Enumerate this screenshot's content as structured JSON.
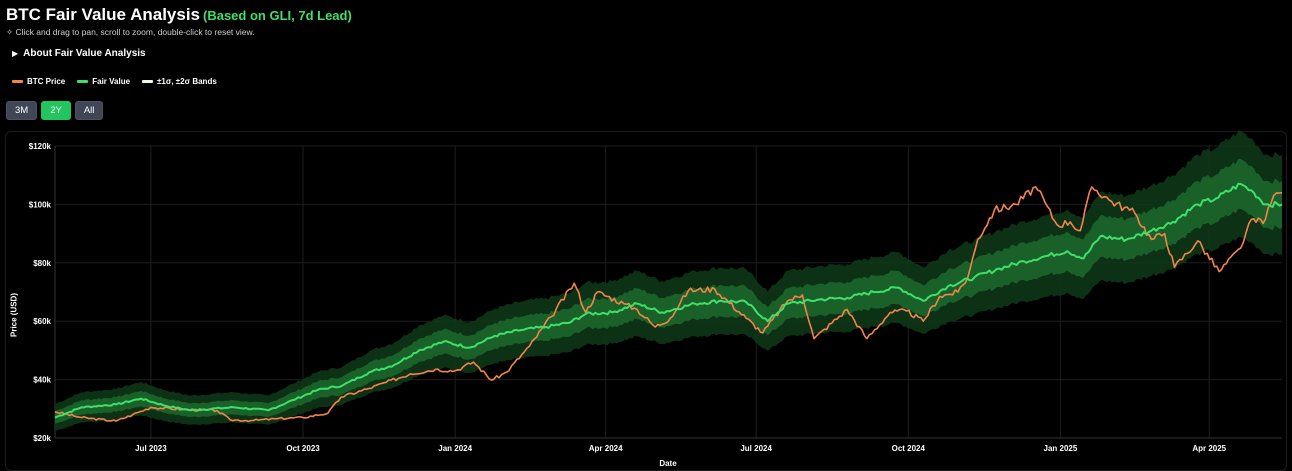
{
  "header": {
    "title": "BTC Fair Value Analysis",
    "subtitle": "(Based on GLI, 7d Lead)",
    "hint": "✧ Click and drag to pan, scroll to zoom, double-click to reset view.",
    "about_label": "About Fair Value Analysis",
    "about_icon": "triangle-right-icon"
  },
  "ranges": {
    "items": [
      "3M",
      "2Y",
      "All"
    ],
    "selected": "2Y"
  },
  "colors": {
    "btc": "#f5844c",
    "fair": "#3ee06a",
    "band1": "#1c6a2c",
    "band2": "#0e3a17",
    "grid": "#1e1e1e",
    "accent": "#22c55e"
  },
  "chart_data": {
    "type": "line",
    "xlabel": "Date",
    "ylabel": "Price (USD)",
    "x_range": [
      "2023-05-04",
      "2025-05-15"
    ],
    "ylim": [
      20000,
      120000
    ],
    "y_ticks": [
      {
        "value": 20000,
        "label": "$20k"
      },
      {
        "value": 40000,
        "label": "$40k"
      },
      {
        "value": 60000,
        "label": "$60k"
      },
      {
        "value": 80000,
        "label": "$80k"
      },
      {
        "value": 100000,
        "label": "$100k"
      },
      {
        "value": 120000,
        "label": "$120k"
      }
    ],
    "x_ticks": [
      {
        "date": "2023-07-01",
        "label": "Jul 2023"
      },
      {
        "date": "2023-10-01",
        "label": "Oct 2023"
      },
      {
        "date": "2024-01-01",
        "label": "Jan 2024"
      },
      {
        "date": "2024-04-01",
        "label": "Apr 2024"
      },
      {
        "date": "2024-07-01",
        "label": "Jul 2024"
      },
      {
        "date": "2024-10-01",
        "label": "Oct 2024"
      },
      {
        "date": "2025-01-01",
        "label": "Jan 2025"
      },
      {
        "date": "2025-04-01",
        "label": "Apr 2025"
      }
    ],
    "grid": true,
    "legend_position": "top-left",
    "series": [
      {
        "name": "BTC Price",
        "color": "#f5844c",
        "points": [
          [
            "2023-05-04",
            29000
          ],
          [
            "2023-05-20",
            27000
          ],
          [
            "2023-06-10",
            25800
          ],
          [
            "2023-06-20",
            28000
          ],
          [
            "2023-07-01",
            30500
          ],
          [
            "2023-07-20",
            29800
          ],
          [
            "2023-08-10",
            29400
          ],
          [
            "2023-08-18",
            26200
          ],
          [
            "2023-09-01",
            26000
          ],
          [
            "2023-09-15",
            26600
          ],
          [
            "2023-10-01",
            27000
          ],
          [
            "2023-10-16",
            28500
          ],
          [
            "2023-10-24",
            34000
          ],
          [
            "2023-11-10",
            37000
          ],
          [
            "2023-12-05",
            42000
          ],
          [
            "2023-12-20",
            43500
          ],
          [
            "2024-01-01",
            43000
          ],
          [
            "2024-01-12",
            46000
          ],
          [
            "2024-01-23",
            39800
          ],
          [
            "2024-02-01",
            42500
          ],
          [
            "2024-02-15",
            51500
          ],
          [
            "2024-02-28",
            61500
          ],
          [
            "2024-03-13",
            73000
          ],
          [
            "2024-03-20",
            63000
          ],
          [
            "2024-03-27",
            70000
          ],
          [
            "2024-04-12",
            66000
          ],
          [
            "2024-04-20",
            64000
          ],
          [
            "2024-05-01",
            58000
          ],
          [
            "2024-05-10",
            61000
          ],
          [
            "2024-05-21",
            70500
          ],
          [
            "2024-06-06",
            71000
          ],
          [
            "2024-06-25",
            61000
          ],
          [
            "2024-07-05",
            56000
          ],
          [
            "2024-07-20",
            67000
          ],
          [
            "2024-07-29",
            69000
          ],
          [
            "2024-08-05",
            54000
          ],
          [
            "2024-08-25",
            64000
          ],
          [
            "2024-09-06",
            54000
          ],
          [
            "2024-09-20",
            63000
          ],
          [
            "2024-09-30",
            63500
          ],
          [
            "2024-10-10",
            60000
          ],
          [
            "2024-10-20",
            68500
          ],
          [
            "2024-10-31",
            70000
          ],
          [
            "2024-11-06",
            75000
          ],
          [
            "2024-11-12",
            88000
          ],
          [
            "2024-11-22",
            98000
          ],
          [
            "2024-12-05",
            100000
          ],
          [
            "2024-12-17",
            106000
          ],
          [
            "2024-12-30",
            93000
          ],
          [
            "2025-01-07",
            94000
          ],
          [
            "2025-01-13",
            91000
          ],
          [
            "2025-01-20",
            106000
          ],
          [
            "2025-02-01",
            101000
          ],
          [
            "2025-02-15",
            97000
          ],
          [
            "2025-02-25",
            88000
          ],
          [
            "2025-03-05",
            90000
          ],
          [
            "2025-03-11",
            78500
          ],
          [
            "2025-03-25",
            87500
          ],
          [
            "2025-04-07",
            77000
          ],
          [
            "2025-04-20",
            85000
          ],
          [
            "2025-04-25",
            93500
          ],
          [
            "2025-05-05",
            95000
          ],
          [
            "2025-05-10",
            103000
          ],
          [
            "2025-05-15",
            104000
          ]
        ]
      },
      {
        "name": "Fair Value",
        "color": "#3ee06a",
        "points": [
          [
            "2023-05-04",
            27000
          ],
          [
            "2023-05-20",
            30500
          ],
          [
            "2023-06-10",
            31500
          ],
          [
            "2023-06-25",
            33500
          ],
          [
            "2023-07-10",
            31000
          ],
          [
            "2023-07-25",
            29500
          ],
          [
            "2023-08-20",
            30500
          ],
          [
            "2023-09-10",
            29500
          ],
          [
            "2023-09-25",
            33000
          ],
          [
            "2023-10-10",
            36500
          ],
          [
            "2023-10-25",
            38000
          ],
          [
            "2023-11-10",
            42500
          ],
          [
            "2023-11-25",
            45000
          ],
          [
            "2023-12-10",
            50000
          ],
          [
            "2023-12-25",
            53000
          ],
          [
            "2024-01-10",
            51000
          ],
          [
            "2024-01-25",
            55000
          ],
          [
            "2024-02-10",
            57000
          ],
          [
            "2024-02-25",
            58000
          ],
          [
            "2024-03-10",
            59500
          ],
          [
            "2024-03-20",
            62500
          ],
          [
            "2024-04-05",
            63000
          ],
          [
            "2024-04-20",
            66000
          ],
          [
            "2024-05-05",
            63000
          ],
          [
            "2024-05-25",
            66000
          ],
          [
            "2024-06-10",
            67000
          ],
          [
            "2024-06-25",
            66500
          ],
          [
            "2024-07-08",
            60000
          ],
          [
            "2024-07-20",
            66000
          ],
          [
            "2024-08-10",
            67500
          ],
          [
            "2024-08-25",
            68000
          ],
          [
            "2024-09-10",
            70000
          ],
          [
            "2024-09-25",
            71500
          ],
          [
            "2024-10-10",
            67000
          ],
          [
            "2024-10-25",
            72000
          ],
          [
            "2024-11-10",
            75000
          ],
          [
            "2024-11-25",
            78000
          ],
          [
            "2024-12-10",
            80500
          ],
          [
            "2024-12-25",
            82500
          ],
          [
            "2025-01-05",
            84000
          ],
          [
            "2025-01-15",
            81500
          ],
          [
            "2025-01-25",
            89000
          ],
          [
            "2025-02-10",
            88000
          ],
          [
            "2025-02-25",
            91000
          ],
          [
            "2025-03-10",
            94000
          ],
          [
            "2025-03-25",
            100000
          ],
          [
            "2025-04-05",
            102000
          ],
          [
            "2025-04-20",
            107000
          ],
          [
            "2025-04-28",
            104000
          ],
          [
            "2025-05-05",
            100000
          ],
          [
            "2025-05-15",
            100000
          ]
        ]
      },
      {
        "name": "±1σ, ±2σ Bands",
        "color": "#e8ffe8"
      }
    ]
  }
}
